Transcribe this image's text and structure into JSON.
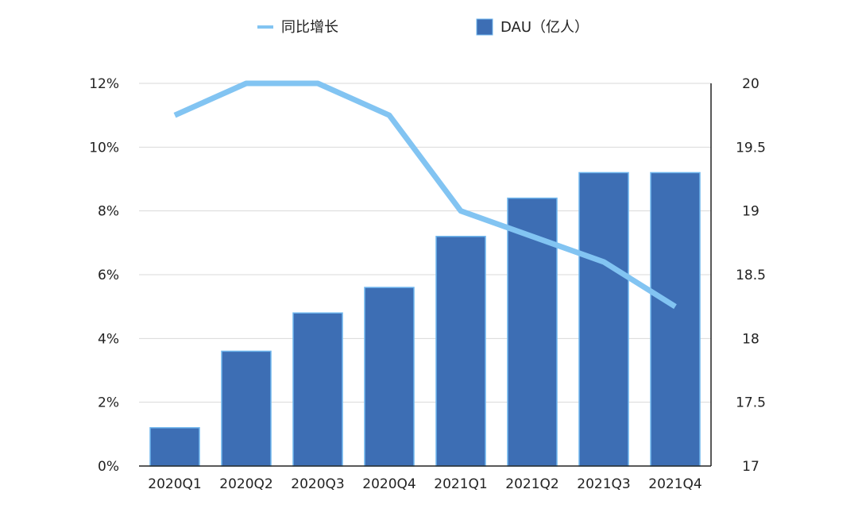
{
  "chart_data": {
    "type": "bar+line",
    "categories": [
      "2020Q1",
      "2020Q2",
      "2020Q3",
      "2020Q4",
      "2021Q1",
      "2021Q2",
      "2021Q3",
      "2021Q4"
    ],
    "series": [
      {
        "name": "DAU（亿人）",
        "type": "bar",
        "axis": "right",
        "values": [
          17.3,
          17.9,
          18.2,
          18.4,
          18.8,
          19.1,
          19.3,
          19.3
        ]
      },
      {
        "name": "同比增长",
        "type": "line",
        "axis": "left",
        "values": [
          11,
          12,
          12,
          11,
          8,
          7.2,
          6.4,
          5
        ]
      }
    ],
    "left_axis": {
      "ylim": [
        0,
        12
      ],
      "ticks": [
        0,
        2,
        4,
        6,
        8,
        10,
        12
      ],
      "tick_labels": [
        "0%",
        "2%",
        "4%",
        "6%",
        "8%",
        "10%",
        "12%"
      ]
    },
    "right_axis": {
      "ylim": [
        17,
        20
      ],
      "ticks": [
        17,
        17.5,
        18,
        18.5,
        19,
        19.5,
        20
      ],
      "tick_labels": [
        "17",
        "17.5",
        "18",
        "18.5",
        "19",
        "19.5",
        "20"
      ]
    },
    "grid": true,
    "legend_position": "top-center",
    "colors": {
      "bar": "#3d6eb4",
      "bar_edge": "#6fb6ee",
      "line": "#82c4f2",
      "grid": "#d9d9d9",
      "axis": "#222222"
    }
  }
}
